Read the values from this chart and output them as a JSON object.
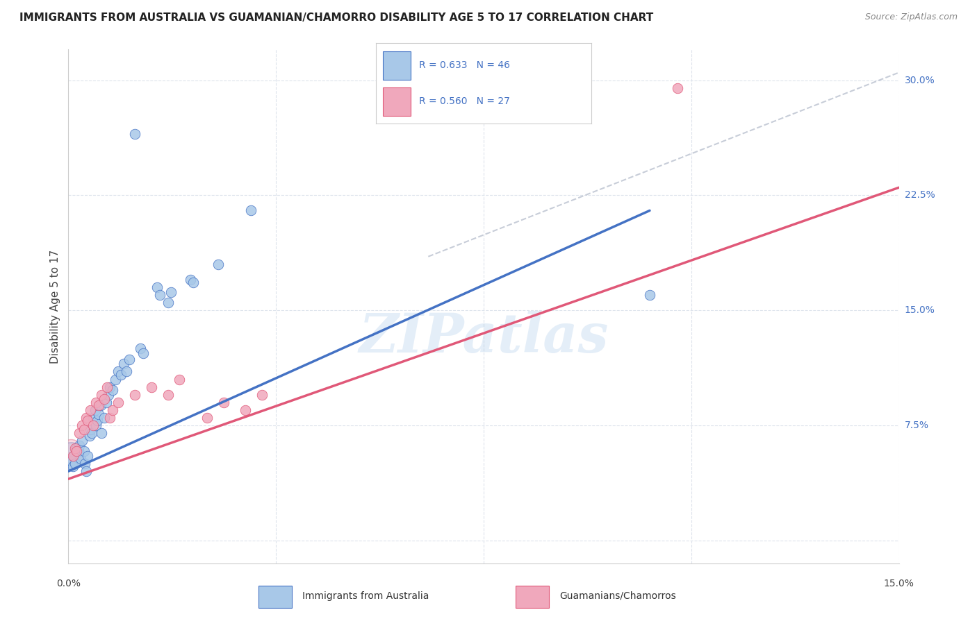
{
  "title": "IMMIGRANTS FROM AUSTRALIA VS GUAMANIAN/CHAMORRO DISABILITY AGE 5 TO 17 CORRELATION CHART",
  "source": "Source: ZipAtlas.com",
  "ylabel": "Disability Age 5 to 17",
  "xlim": [
    0.0,
    15.0
  ],
  "ylim": [
    -1.5,
    32.0
  ],
  "yticks": [
    0.0,
    7.5,
    15.0,
    22.5,
    30.0
  ],
  "ytick_labels": [
    "",
    "7.5%",
    "15.0%",
    "22.5%",
    "30.0%"
  ],
  "xtick_positions": [
    0.0,
    3.75,
    7.5,
    11.25,
    15.0
  ],
  "legend_r1": "R = 0.633",
  "legend_n1": "N = 46",
  "legend_r2": "R = 0.560",
  "legend_n2": "N = 27",
  "color_blue": "#a8c8e8",
  "color_pink": "#f0a8bc",
  "line_blue": "#4472c4",
  "line_pink": "#e05878",
  "line_diag": "#b0b8c8",
  "watermark": "ZIPatlas",
  "australia_points": [
    [
      0.05,
      5.2
    ],
    [
      0.08,
      4.8
    ],
    [
      0.1,
      5.5
    ],
    [
      0.12,
      5.0
    ],
    [
      0.15,
      6.0
    ],
    [
      0.18,
      5.8
    ],
    [
      0.2,
      6.2
    ],
    [
      0.22,
      5.3
    ],
    [
      0.25,
      6.5
    ],
    [
      0.28,
      5.8
    ],
    [
      0.3,
      5.0
    ],
    [
      0.32,
      4.5
    ],
    [
      0.35,
      5.5
    ],
    [
      0.38,
      6.8
    ],
    [
      0.4,
      7.2
    ],
    [
      0.42,
      7.0
    ],
    [
      0.45,
      8.0
    ],
    [
      0.48,
      8.5
    ],
    [
      0.5,
      7.5
    ],
    [
      0.52,
      7.8
    ],
    [
      0.55,
      8.2
    ],
    [
      0.58,
      8.8
    ],
    [
      0.6,
      7.0
    ],
    [
      0.65,
      8.0
    ],
    [
      0.68,
      9.0
    ],
    [
      0.72,
      9.5
    ],
    [
      0.75,
      10.0
    ],
    [
      0.8,
      9.8
    ],
    [
      0.85,
      10.5
    ],
    [
      0.9,
      11.0
    ],
    [
      0.95,
      10.8
    ],
    [
      1.0,
      11.5
    ],
    [
      1.05,
      11.0
    ],
    [
      1.1,
      11.8
    ],
    [
      1.3,
      12.5
    ],
    [
      1.35,
      12.2
    ],
    [
      1.6,
      16.5
    ],
    [
      1.65,
      16.0
    ],
    [
      1.8,
      15.5
    ],
    [
      1.85,
      16.2
    ],
    [
      2.2,
      17.0
    ],
    [
      2.25,
      16.8
    ],
    [
      2.7,
      18.0
    ],
    [
      1.2,
      26.5
    ],
    [
      3.3,
      21.5
    ],
    [
      10.5,
      16.0
    ]
  ],
  "guamanian_points": [
    [
      0.08,
      5.5
    ],
    [
      0.12,
      6.0
    ],
    [
      0.15,
      5.8
    ],
    [
      0.2,
      7.0
    ],
    [
      0.25,
      7.5
    ],
    [
      0.28,
      7.2
    ],
    [
      0.32,
      8.0
    ],
    [
      0.35,
      7.8
    ],
    [
      0.4,
      8.5
    ],
    [
      0.45,
      7.5
    ],
    [
      0.5,
      9.0
    ],
    [
      0.55,
      8.8
    ],
    [
      0.6,
      9.5
    ],
    [
      0.65,
      9.2
    ],
    [
      0.7,
      10.0
    ],
    [
      0.75,
      8.0
    ],
    [
      0.8,
      8.5
    ],
    [
      0.9,
      9.0
    ],
    [
      1.2,
      9.5
    ],
    [
      1.5,
      10.0
    ],
    [
      1.8,
      9.5
    ],
    [
      2.0,
      10.5
    ],
    [
      2.5,
      8.0
    ],
    [
      2.8,
      9.0
    ],
    [
      3.2,
      8.5
    ],
    [
      3.5,
      9.5
    ],
    [
      11.0,
      29.5
    ]
  ],
  "blue_line_x": [
    0.0,
    10.5
  ],
  "blue_line_y": [
    4.5,
    21.5
  ],
  "pink_line_x": [
    0.0,
    15.0
  ],
  "pink_line_y": [
    4.0,
    23.0
  ],
  "diag_line_x": [
    6.5,
    15.0
  ],
  "diag_line_y": [
    18.5,
    30.5
  ],
  "background_color": "#ffffff",
  "grid_color": "#dde3ec"
}
